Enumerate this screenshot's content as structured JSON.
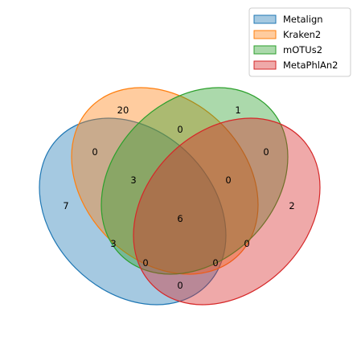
{
  "chart_data": {
    "type": "venn",
    "sets": [
      {
        "name": "Metalign",
        "color": "#1f77b4"
      },
      {
        "name": "Kraken2",
        "color": "#ff7f0e"
      },
      {
        "name": "mOTUs2",
        "color": "#2ca02c"
      },
      {
        "name": "MetaPhlAn2",
        "color": "#d62728"
      }
    ],
    "regions": [
      {
        "sets": [
          "Kraken2"
        ],
        "value": "20"
      },
      {
        "sets": [
          "mOTUs2"
        ],
        "value": "1"
      },
      {
        "sets": [
          "Kraken2",
          "mOTUs2"
        ],
        "value": "0"
      },
      {
        "sets": [
          "Metalign",
          "Kraken2"
        ],
        "value": "0"
      },
      {
        "sets": [
          "mOTUs2",
          "MetaPhlAn2"
        ],
        "value": "0"
      },
      {
        "sets": [
          "Metalign",
          "Kraken2",
          "mOTUs2"
        ],
        "value": "3"
      },
      {
        "sets": [
          "Kraken2",
          "mOTUs2",
          "MetaPhlAn2"
        ],
        "value": "0"
      },
      {
        "sets": [
          "Metalign"
        ],
        "value": "7"
      },
      {
        "sets": [
          "Metalign",
          "Kraken2",
          "mOTUs2",
          "MetaPhlAn2"
        ],
        "value": "6"
      },
      {
        "sets": [
          "MetaPhlAn2"
        ],
        "value": "2"
      },
      {
        "sets": [
          "Metalign",
          "mOTUs2"
        ],
        "value": "3"
      },
      {
        "sets": [
          "Kraken2",
          "MetaPhlAn2"
        ],
        "value": "0"
      },
      {
        "sets": [
          "Metalign",
          "mOTUs2",
          "MetaPhlAn2"
        ],
        "value": "0"
      },
      {
        "sets": [
          "Metalign",
          "Kraken2",
          "MetaPhlAn2"
        ],
        "value": "0"
      },
      {
        "sets": [
          "Metalign",
          "MetaPhlAn2"
        ],
        "value": "0"
      }
    ],
    "legend_position": "top-right"
  }
}
